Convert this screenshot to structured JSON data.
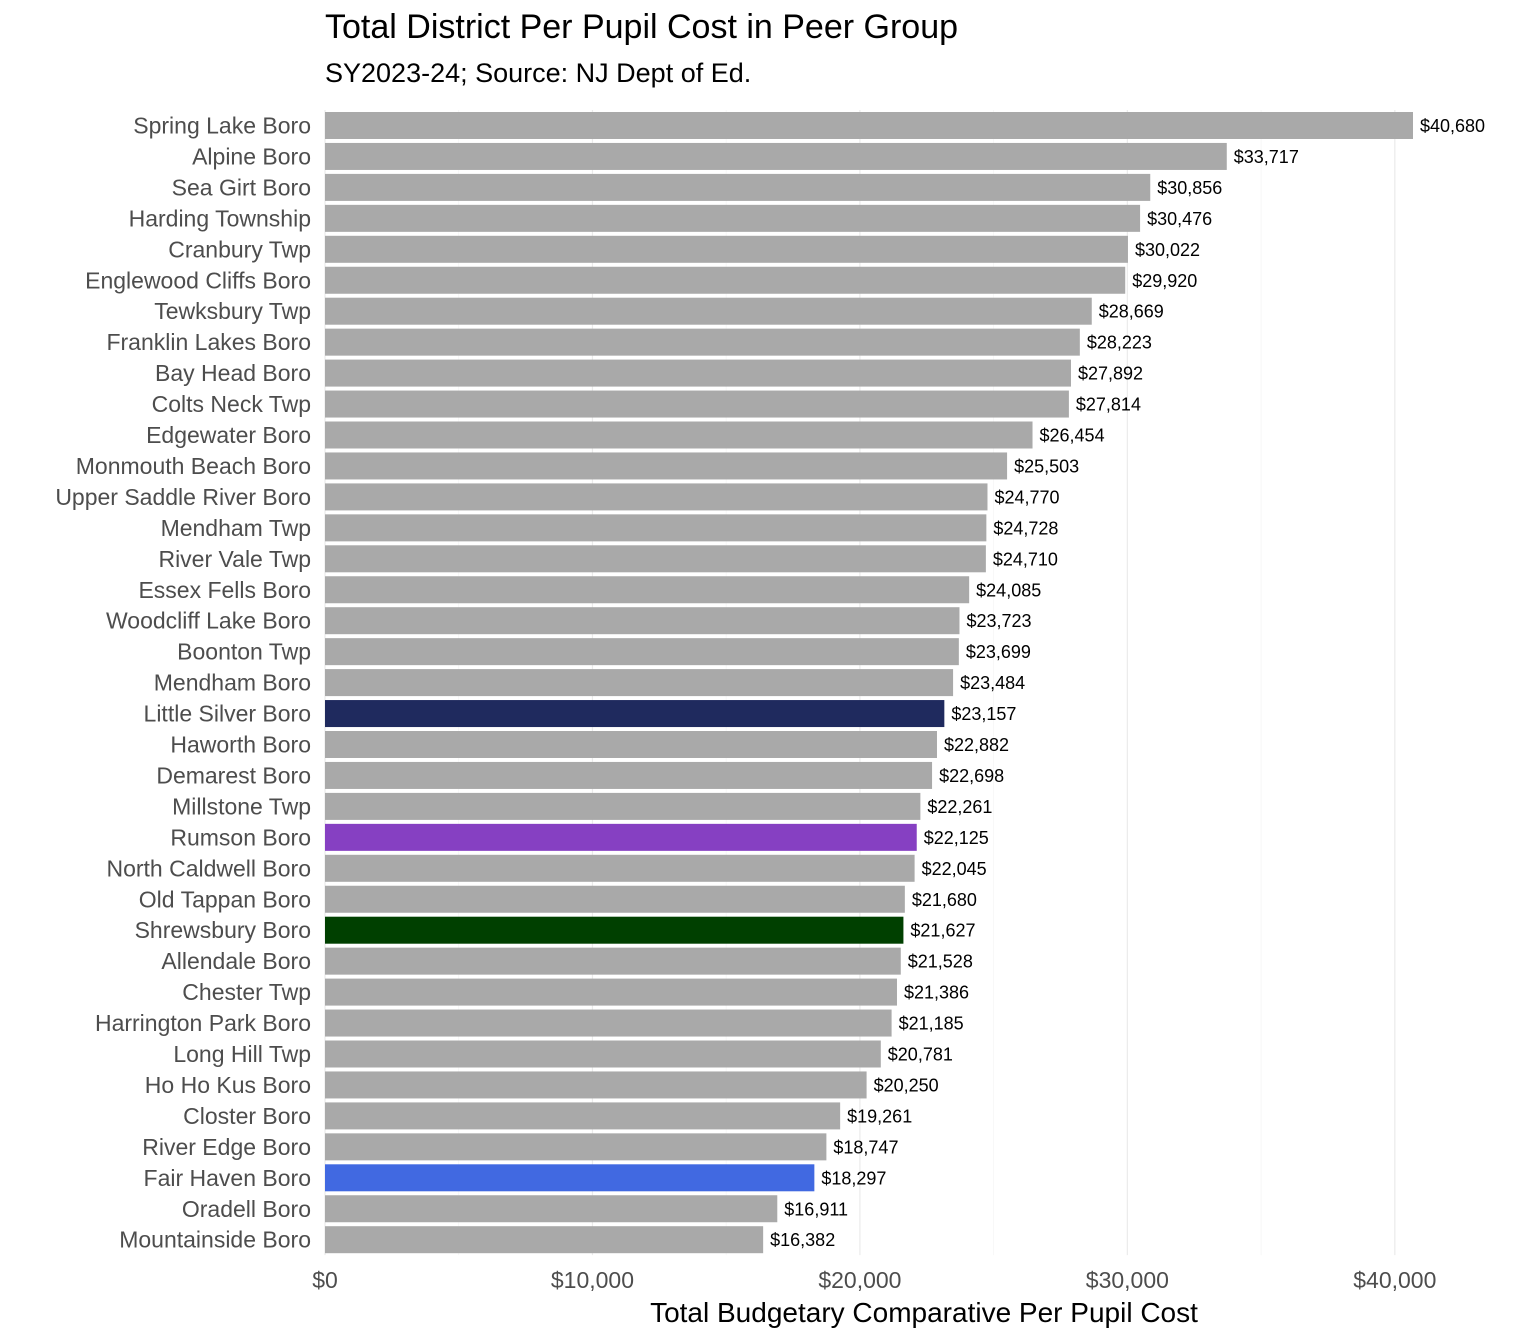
{
  "chart_data": {
    "type": "bar",
    "orientation": "horizontal",
    "title": "Total District Per Pupil Cost in Peer Group",
    "subtitle": "SY2023-24; Source: NJ Dept of Ed.",
    "xlabel": "Total Budgetary Comparative Per Pupil Cost",
    "ylabel": "",
    "xlim": [
      0,
      43000
    ],
    "x_ticks": [
      0,
      10000,
      20000,
      30000,
      40000
    ],
    "x_tick_labels": [
      "$0",
      "$10,000",
      "$20,000",
      "$30,000",
      "$40,000"
    ],
    "grid": true,
    "legend": "none",
    "default_color": "#a9a9a9",
    "categories": [
      "Spring Lake Boro",
      "Alpine Boro",
      "Sea Girt Boro",
      "Harding Township",
      "Cranbury Twp",
      "Englewood Cliffs Boro",
      "Tewksbury Twp",
      "Franklin Lakes Boro",
      "Bay Head Boro",
      "Colts Neck Twp",
      "Edgewater Boro",
      "Monmouth Beach Boro",
      "Upper Saddle River Boro",
      "Mendham Twp",
      "River Vale Twp",
      "Essex Fells Boro",
      "Woodcliff Lake Boro",
      "Boonton Twp",
      "Mendham Boro",
      "Little Silver Boro",
      "Haworth Boro",
      "Demarest Boro",
      "Millstone Twp",
      "Rumson Boro",
      "North Caldwell Boro",
      "Old Tappan Boro",
      "Shrewsbury Boro",
      "Allendale Boro",
      "Chester Twp",
      "Harrington Park Boro",
      "Long Hill Twp",
      "Ho Ho Kus Boro",
      "Closter Boro",
      "River Edge Boro",
      "Fair Haven Boro",
      "Oradell Boro",
      "Mountainside Boro"
    ],
    "values": [
      40680,
      33717,
      30856,
      30476,
      30022,
      29920,
      28669,
      28223,
      27892,
      27814,
      26454,
      25503,
      24770,
      24728,
      24710,
      24085,
      23723,
      23699,
      23484,
      23157,
      22882,
      22698,
      22261,
      22125,
      22045,
      21680,
      21627,
      21528,
      21386,
      21185,
      20781,
      20250,
      19261,
      18747,
      18297,
      16911,
      16382
    ],
    "value_labels": [
      "$40,680",
      "$33,717",
      "$30,856",
      "$30,476",
      "$30,022",
      "$29,920",
      "$28,669",
      "$28,223",
      "$27,892",
      "$27,814",
      "$26,454",
      "$25,503",
      "$24,770",
      "$24,728",
      "$24,710",
      "$24,085",
      "$23,723",
      "$23,699",
      "$23,484",
      "$23,157",
      "$22,882",
      "$22,698",
      "$22,261",
      "$22,125",
      "$22,045",
      "$21,680",
      "$21,627",
      "$21,528",
      "$21,386",
      "$21,185",
      "$20,781",
      "$20,250",
      "$19,261",
      "$18,747",
      "$18,297",
      "$16,911",
      "$16,382"
    ],
    "highlight_colors": {
      "Little Silver Boro": "#1f2a5e",
      "Rumson Boro": "#8640c2",
      "Shrewsbury Boro": "#004000",
      "Fair Haven Boro": "#4169e1"
    }
  }
}
